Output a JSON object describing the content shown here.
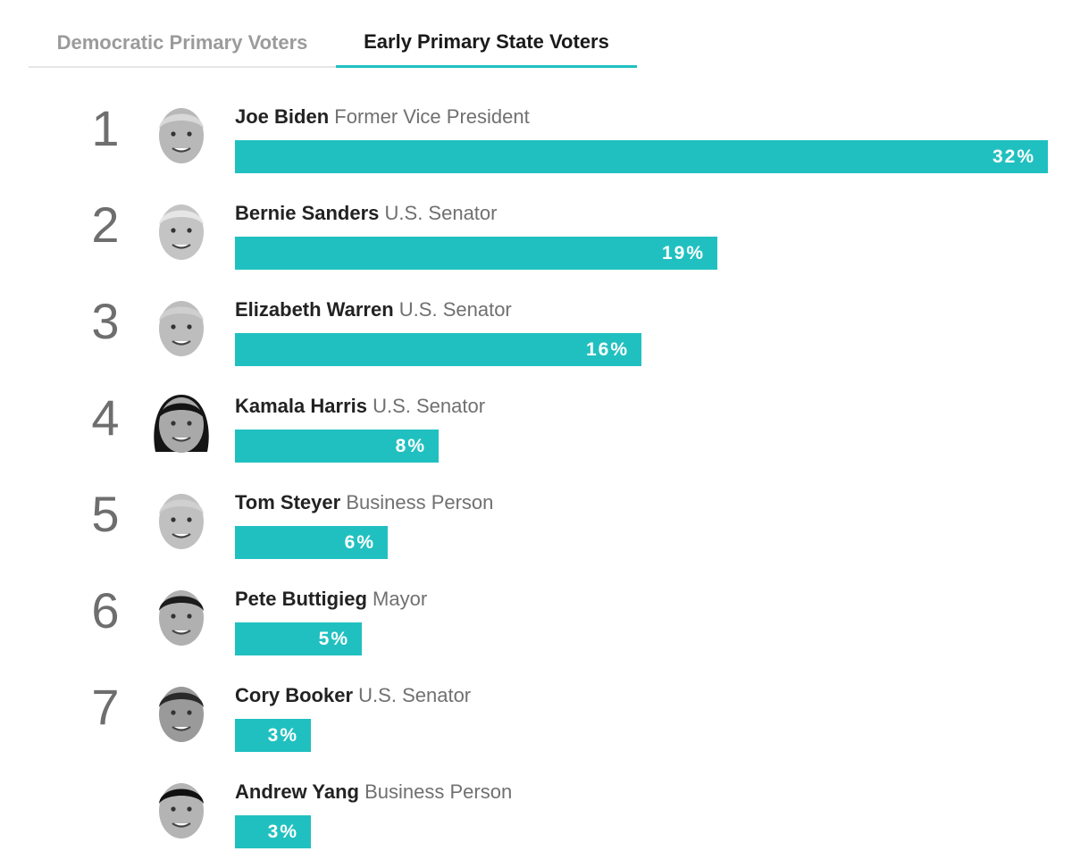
{
  "tabs": [
    {
      "label": "Democratic Primary Voters",
      "active": false
    },
    {
      "label": "Early Primary State Voters",
      "active": true
    }
  ],
  "colors": {
    "accent": "#21c0c0",
    "tab_inactive": "#9b9b9b"
  },
  "chart_data": {
    "type": "bar",
    "orientation": "horizontal",
    "xlim": [
      0,
      32
    ],
    "bars": [
      {
        "rank": "1",
        "name": "Joe Biden",
        "title": "Former Vice President",
        "value": 32,
        "label": "32%",
        "avatar_icon": "joe-biden-avatar-icon"
      },
      {
        "rank": "2",
        "name": "Bernie Sanders",
        "title": "U.S. Senator",
        "value": 19,
        "label": "19%",
        "avatar_icon": "bernie-sanders-avatar-icon"
      },
      {
        "rank": "3",
        "name": "Elizabeth Warren",
        "title": "U.S. Senator",
        "value": 16,
        "label": "16%",
        "avatar_icon": "elizabeth-warren-avatar-icon"
      },
      {
        "rank": "4",
        "name": "Kamala Harris",
        "title": "U.S. Senator",
        "value": 8,
        "label": "8%",
        "avatar_icon": "kamala-harris-avatar-icon"
      },
      {
        "rank": "5",
        "name": "Tom Steyer",
        "title": "Business Person",
        "value": 6,
        "label": "6%",
        "avatar_icon": "tom-steyer-avatar-icon"
      },
      {
        "rank": "6",
        "name": "Pete Buttigieg",
        "title": "Mayor",
        "value": 5,
        "label": "5%",
        "avatar_icon": "pete-buttigieg-avatar-icon"
      },
      {
        "rank": "7",
        "name": "Cory Booker",
        "title": "U.S. Senator",
        "value": 3,
        "label": "3%",
        "avatar_icon": "cory-booker-avatar-icon"
      },
      {
        "rank": "",
        "name": "Andrew Yang",
        "title": "Business Person",
        "value": 3,
        "label": "3%",
        "avatar_icon": "andrew-yang-avatar-icon"
      }
    ]
  }
}
